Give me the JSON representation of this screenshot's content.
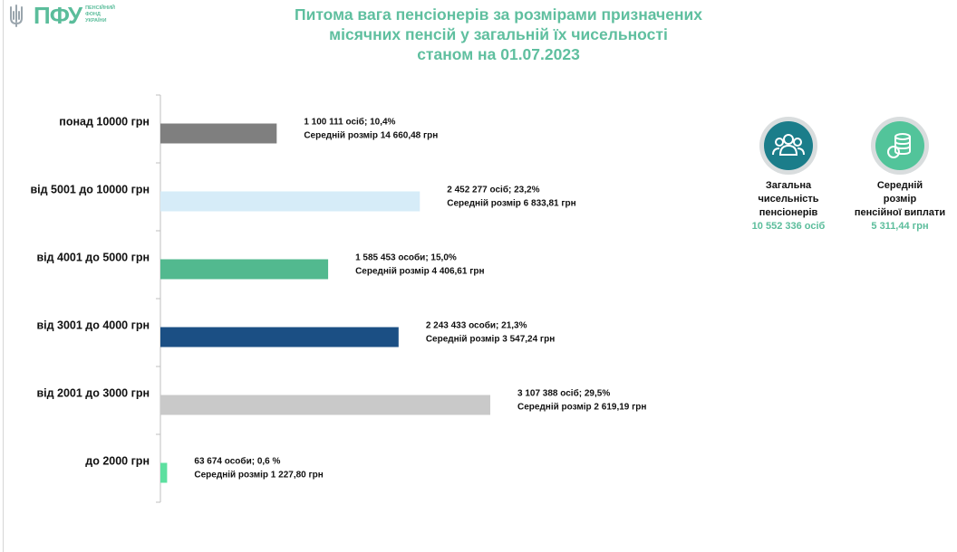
{
  "logo": {
    "brand": "ПФУ",
    "sub": [
      "ПЕНСІЙНИЙ",
      "ФОНД",
      "УКРАЇНИ"
    ]
  },
  "title": {
    "line1": "Питома вага пенсіонерів за розмірами призначених",
    "line2": "місячних пенсій у загальній їх чисельності",
    "line3": "станом на 01.07.2023"
  },
  "stats": {
    "total": {
      "label_lines": [
        "Загальна",
        "чисельність",
        "пенсіонерів"
      ],
      "value": "10 552 336 осіб",
      "icon": "people-group-icon",
      "color": "#1b7d8a"
    },
    "average": {
      "label_lines": [
        "Середній",
        "розмір",
        "пенсійної виплати"
      ],
      "value": "5 311,44 грн",
      "icon": "coins-icon",
      "color": "#52c49a"
    }
  },
  "chart_data": {
    "type": "bar",
    "orientation": "horizontal",
    "categories": [
      "понад 10000 грн",
      "від 5001 до 10000 грн",
      "від 4001 до 5000 грн",
      "від 3001 до 4000 грн",
      "від 2001 до 3000 грн",
      "до 2000 грн"
    ],
    "values": [
      10.4,
      23.2,
      15.0,
      21.3,
      29.5,
      0.6
    ],
    "colors": [
      "#7f7f7f",
      "#d6ecf8",
      "#52b98f",
      "#1b4f84",
      "#c9c9c9",
      "#5de0a0"
    ],
    "annotations": [
      {
        "line1": "1 100 111 осіб;  10,4%",
        "line2": "Середній розмір 14 660,48 грн"
      },
      {
        "line1": "2 452 277 осіб; 23,2%",
        "line2": "Середній розмір 6 833,81 грн"
      },
      {
        "line1": "1 585 453 особи; 15,0%",
        "line2": "Середній розмір 4 406,61 грн"
      },
      {
        "line1": "2 243 433 особи; 21,3%",
        "line2": "Середній розмір 3 547,24 грн"
      },
      {
        "line1": "3 107 388 осіб; 29,5%",
        "line2": "Середній розмір 2 619,19 грн"
      },
      {
        "line1": "63 674 особи; 0,6 %",
        "line2": "Середній розмір 1 227,80 грн"
      }
    ],
    "xlim": [
      0,
      30
    ],
    "grid": false,
    "legend": "none"
  }
}
